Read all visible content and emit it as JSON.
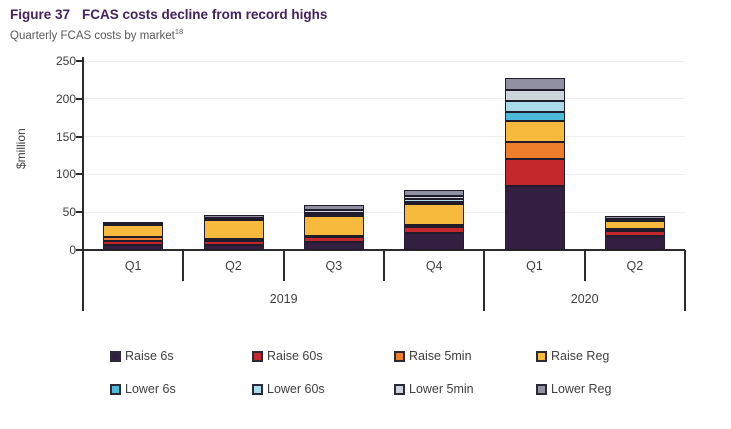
{
  "header": {
    "figure_label": "Figure 37",
    "title": "FCAS costs decline from record highs",
    "subtitle": "Quarterly FCAS costs by market",
    "footnote_ref": "18"
  },
  "colors": {
    "title_accent": "#44215f",
    "axis": "#2b2b2b",
    "gridline": "#efefef",
    "text": "#404040"
  },
  "chart_data": {
    "type": "bar",
    "stacked": true,
    "title": "FCAS costs decline from record highs",
    "subtitle": "Quarterly FCAS costs by market",
    "ylabel": "$million",
    "xlabel": "",
    "ylim": [
      0,
      250
    ],
    "yticks": [
      0,
      50,
      100,
      150,
      200,
      250
    ],
    "grid": true,
    "legend_position": "bottom",
    "categories": [
      "Q1",
      "Q2",
      "Q3",
      "Q4",
      "Q1",
      "Q2"
    ],
    "groups": [
      {
        "label": "2019",
        "span": 4
      },
      {
        "label": "2020",
        "span": 2
      }
    ],
    "series": [
      {
        "name": "Raise 6s",
        "color": "#332040",
        "values": [
          7,
          7,
          10,
          22,
          85,
          18
        ]
      },
      {
        "name": "Raise 60s",
        "color": "#c5282c",
        "values": [
          5,
          5,
          7,
          8,
          36,
          7
        ]
      },
      {
        "name": "Raise 5min",
        "color": "#ee7e2b",
        "values": [
          5,
          3,
          2,
          2.5,
          22,
          2.5
        ]
      },
      {
        "name": "Raise Reg",
        "color": "#f7ba3d",
        "values": [
          16,
          25,
          26,
          29,
          27,
          11
        ]
      },
      {
        "name": "Lower 6s",
        "color": "#4cb9d9",
        "values": [
          0.5,
          0.5,
          1.5,
          2.5,
          13,
          0.5
        ]
      },
      {
        "name": "Lower 60s",
        "color": "#abdbeb",
        "values": [
          0.5,
          0.5,
          2,
          3.5,
          14,
          1
        ]
      },
      {
        "name": "Lower 5min",
        "color": "#ccd5dc",
        "values": [
          1,
          1.5,
          4,
          4.5,
          15,
          1.5
        ]
      },
      {
        "name": "Lower Reg",
        "color": "#8f90a2",
        "values": [
          2,
          3.5,
          7,
          7,
          15,
          3.5
        ]
      }
    ]
  }
}
